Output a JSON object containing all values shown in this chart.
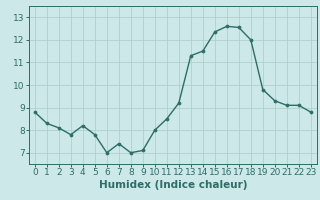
{
  "x": [
    0,
    1,
    2,
    3,
    4,
    5,
    6,
    7,
    8,
    9,
    10,
    11,
    12,
    13,
    14,
    15,
    16,
    17,
    18,
    19,
    20,
    21,
    22,
    23
  ],
  "y": [
    8.8,
    8.3,
    8.1,
    7.8,
    8.2,
    7.8,
    7.0,
    7.4,
    7.0,
    7.1,
    8.0,
    8.5,
    9.2,
    11.3,
    11.5,
    12.35,
    12.6,
    12.55,
    12.0,
    9.8,
    9.3,
    9.1,
    9.1,
    8.8
  ],
  "xlabel": "Humidex (Indice chaleur)",
  "line_color": "#2e6e66",
  "marker_color": "#2e6e66",
  "bg_color": "#cce8e8",
  "grid_color": "#b0d0d0",
  "xlim": [
    -0.5,
    23.5
  ],
  "ylim": [
    6.5,
    13.5
  ],
  "yticks": [
    7,
    8,
    9,
    10,
    11,
    12,
    13
  ],
  "xticks": [
    0,
    1,
    2,
    3,
    4,
    5,
    6,
    7,
    8,
    9,
    10,
    11,
    12,
    13,
    14,
    15,
    16,
    17,
    18,
    19,
    20,
    21,
    22,
    23
  ],
  "xlabel_fontsize": 7.5,
  "tick_fontsize": 6.5,
  "axis_color": "#2e6e66",
  "spine_color": "#2e6e66"
}
